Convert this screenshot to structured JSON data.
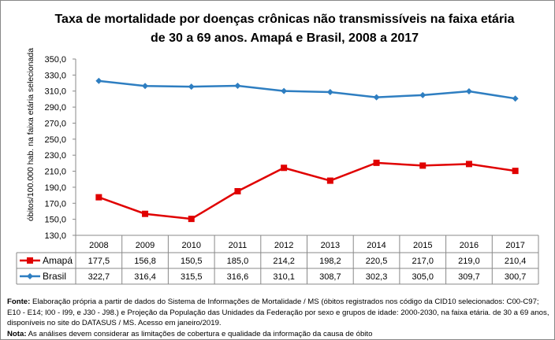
{
  "chart_data": {
    "type": "line",
    "title": "Taxa de mortalidade por doenças crônicas não transmissíveis na faixa etária de 30 a 69 anos. Amapá e Brasil, 2008 a 2017",
    "ylabel": "óbitos/100.000 hab. na faixa etária selecionada",
    "xlabel": "",
    "categories": [
      "2008",
      "2009",
      "2010",
      "2011",
      "2012",
      "2013",
      "2014",
      "2015",
      "2016",
      "2017"
    ],
    "ylim": [
      130,
      350
    ],
    "yticks": [
      "130,0",
      "150,0",
      "170,0",
      "190,0",
      "210,0",
      "230,0",
      "250,0",
      "270,0",
      "290,0",
      "310,0",
      "330,0",
      "350,0"
    ],
    "grid": false,
    "legend": "data-table",
    "series": [
      {
        "name": "Amapá",
        "color": "#E00000",
        "marker": "square",
        "values": [
          177.5,
          156.8,
          150.5,
          185.0,
          214.2,
          198.2,
          220.5,
          217.0,
          219.0,
          210.4
        ],
        "labels": [
          "177,5",
          "156,8",
          "150,5",
          "185,0",
          "214,2",
          "198,2",
          "220,5",
          "217,0",
          "219,0",
          "210,4"
        ]
      },
      {
        "name": "Brasil",
        "color": "#2E7EC1",
        "marker": "diamond",
        "values": [
          322.7,
          316.4,
          315.5,
          316.6,
          310.1,
          308.7,
          302.3,
          305.0,
          309.7,
          300.7
        ],
        "labels": [
          "322,7",
          "316,4",
          "315,5",
          "316,6",
          "310,1",
          "308,7",
          "302,3",
          "305,0",
          "309,7",
          "300,7"
        ]
      }
    ]
  },
  "notes": {
    "fonte_label": "Fonte:",
    "fonte_text": " Elaboração própria a partir de dados do Sistema de Informações de Mortalidade / MS (óbitos registrados nos código da CID10 selecionados: C00-C97; E10 - E14; I00 - I99, e J30 - J98.) e Projeção da População das Unidades da Federação por sexo e grupos de idade: 2000-2030, na faixa etária. de 30 a 69 anos, disponíveis no site do DATASUS / MS.  Acesso em janeiro/2019.",
    "nota_label": "Nota:",
    "nota_text": " As análises devem considerar as limitações de cobertura e qualidade da informação da causa de óbito"
  }
}
